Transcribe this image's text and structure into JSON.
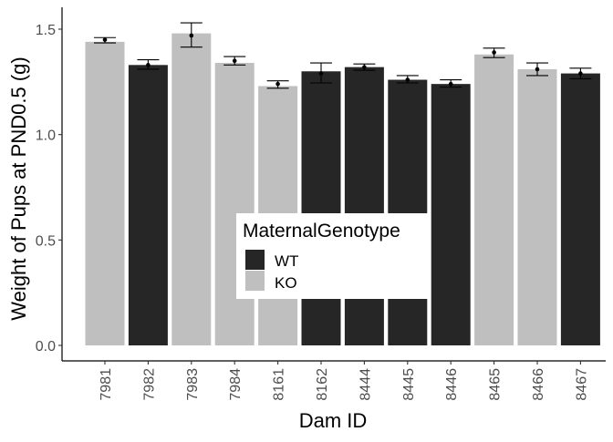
{
  "chart_data": {
    "type": "bar",
    "xlabel": "Dam ID",
    "ylabel": "Weight of Pups at PND0.5 (g)",
    "ylim": [
      0,
      1.6
    ],
    "yticks": [
      0.0,
      0.5,
      1.0,
      1.5
    ],
    "ytick_labels": [
      "0.0",
      "0.5",
      "1.0",
      "1.5"
    ],
    "grid": false,
    "categories": [
      "7981",
      "7982",
      "7983",
      "7984",
      "8161",
      "8162",
      "8444",
      "8445",
      "8446",
      "8465",
      "8466",
      "8467"
    ],
    "values": [
      1.44,
      1.33,
      1.48,
      1.34,
      1.23,
      1.3,
      1.32,
      1.26,
      1.24,
      1.38,
      1.31,
      1.29
    ],
    "point": [
      1.45,
      1.33,
      1.47,
      1.35,
      1.24,
      1.29,
      1.32,
      1.26,
      1.24,
      1.39,
      1.31,
      1.29
    ],
    "error_low": [
      1.435,
      1.31,
      1.415,
      1.33,
      1.22,
      1.245,
      1.305,
      1.245,
      1.225,
      1.365,
      1.28,
      1.265
    ],
    "error_high": [
      1.46,
      1.355,
      1.53,
      1.37,
      1.255,
      1.34,
      1.335,
      1.28,
      1.26,
      1.41,
      1.34,
      1.315
    ],
    "group": [
      "KO",
      "WT",
      "KO",
      "KO",
      "KO",
      "WT",
      "WT",
      "WT",
      "WT",
      "KO",
      "KO",
      "WT"
    ],
    "legend": {
      "title": "MaternalGenotype",
      "placement": "center",
      "entries": [
        {
          "label": "WT",
          "color": "#262626"
        },
        {
          "label": "KO",
          "color": "#bfbfbf"
        }
      ]
    }
  }
}
